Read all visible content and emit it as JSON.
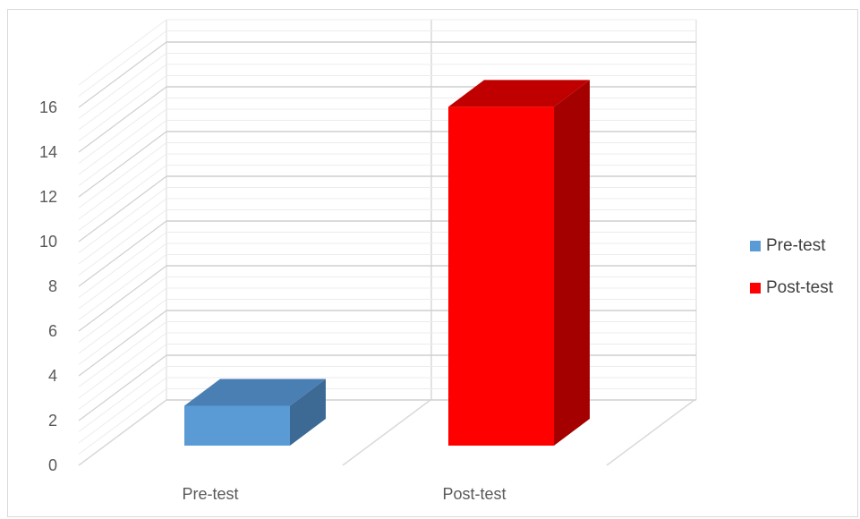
{
  "chart_data": {
    "type": "bar",
    "categories": [
      "Pre-test",
      "Post-test"
    ],
    "series": [
      {
        "name": "Pre-test",
        "values": [
          1.8,
          null
        ],
        "color": "#5b9bd5",
        "side_color": "#3d6995",
        "top_color": "#4a7fb4"
      },
      {
        "name": "Post-test",
        "values": [
          null,
          15.3
        ],
        "color": "#ff0000",
        "side_color": "#a50000",
        "top_color": "#c00000"
      }
    ],
    "yticks": [
      "0",
      "2",
      "4",
      "6",
      "8",
      "10",
      "12",
      "14",
      "16"
    ],
    "ylim": [
      0,
      16
    ],
    "grid": true,
    "legend_position": "right",
    "projection": "3d"
  }
}
